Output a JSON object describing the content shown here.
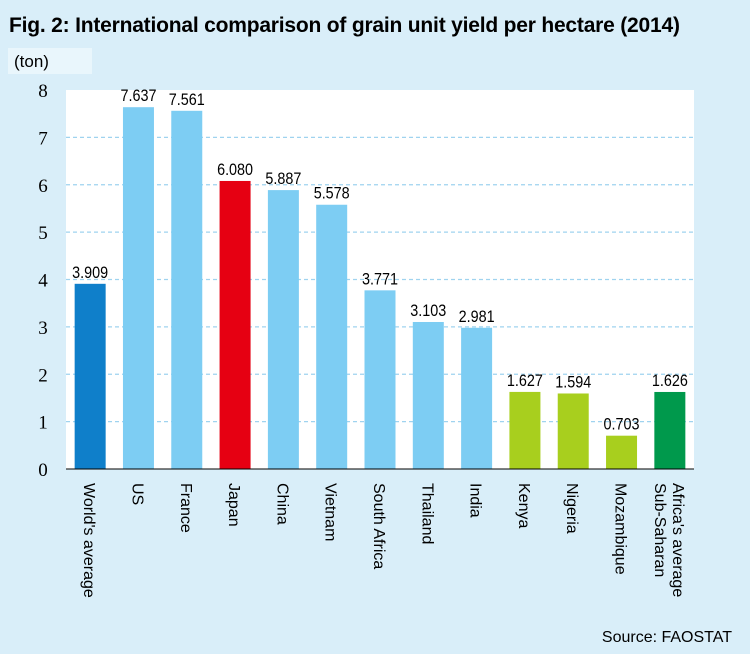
{
  "title": "Fig. 2: International comparison of grain unit yield per hectare (2014)",
  "unit": "(ton)",
  "source": "Source: FAOSTAT",
  "colors": {
    "plot_bg": "#ffffff",
    "gridline": "#9fd3ef",
    "world": "#0f7fca",
    "developed": "#7dcdf3",
    "japan": "#e60012",
    "africa": "#a8cf1e",
    "ssa_avg": "#00994c"
  },
  "chart_data": {
    "type": "bar",
    "ylim": [
      0,
      8
    ],
    "yticks": [
      0,
      1,
      2,
      3,
      4,
      5,
      6,
      7,
      8
    ],
    "grid": true,
    "categories": [
      [
        "World's average"
      ],
      [
        "US"
      ],
      [
        "France"
      ],
      [
        "Japan"
      ],
      [
        "China"
      ],
      [
        "Vietnam"
      ],
      [
        "South Africa"
      ],
      [
        "Thailand"
      ],
      [
        "India"
      ],
      [
        "Kenya"
      ],
      [
        "Nigeria"
      ],
      [
        "Mozambique"
      ],
      [
        "Sub-Saharan",
        "Africa's average"
      ]
    ],
    "values": [
      3.909,
      7.637,
      7.561,
      6.08,
      5.887,
      5.578,
      3.771,
      3.103,
      2.981,
      1.627,
      1.594,
      0.703,
      1.626
    ],
    "value_labels": [
      "3.909",
      "7.637",
      "7.561",
      "6.080",
      "5.887",
      "5.578",
      "3.771",
      "3.103",
      "2.981",
      "1.627",
      "1.594",
      "0.703",
      "1.626"
    ],
    "bar_colors": [
      "#0f7fca",
      "#7dcdf3",
      "#7dcdf3",
      "#e60012",
      "#7dcdf3",
      "#7dcdf3",
      "#7dcdf3",
      "#7dcdf3",
      "#7dcdf3",
      "#a8cf1e",
      "#a8cf1e",
      "#a8cf1e",
      "#00994c"
    ]
  }
}
